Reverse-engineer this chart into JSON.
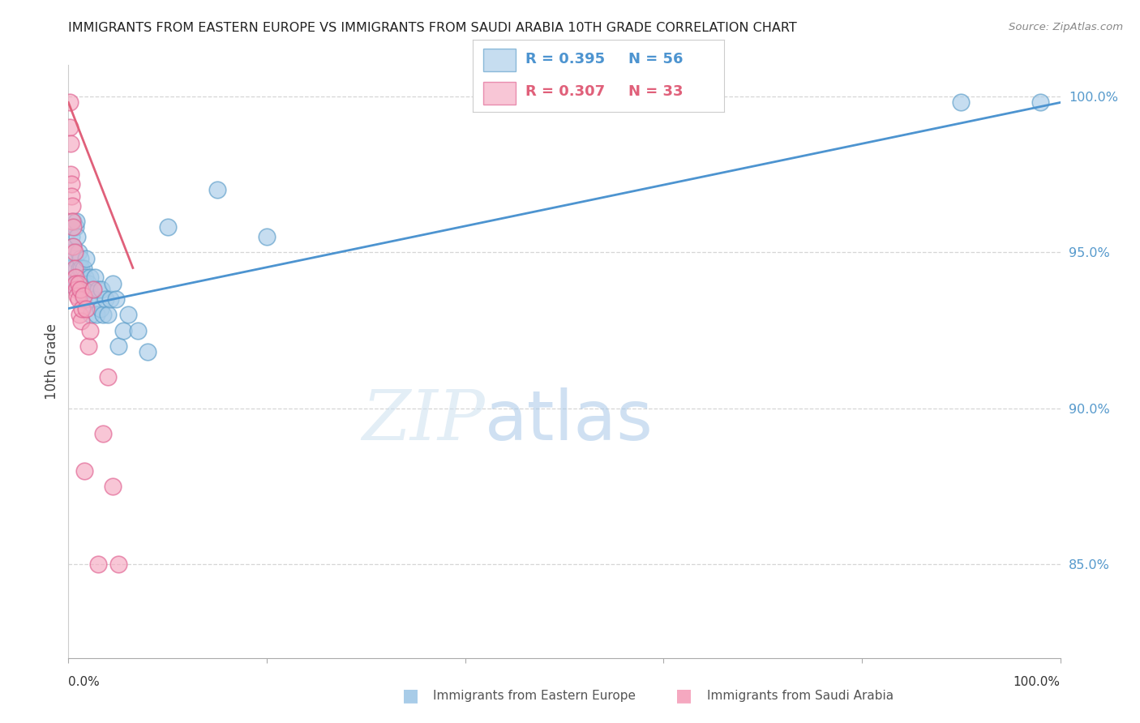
{
  "title": "IMMIGRANTS FROM EASTERN EUROPE VS IMMIGRANTS FROM SAUDI ARABIA 10TH GRADE CORRELATION CHART",
  "source": "Source: ZipAtlas.com",
  "ylabel": "10th Grade",
  "right_ytick_labels": [
    "100.0%",
    "95.0%",
    "90.0%",
    "85.0%"
  ],
  "right_ytick_values": [
    1.0,
    0.95,
    0.9,
    0.85
  ],
  "legend_label_blue": "Immigrants from Eastern Europe",
  "legend_label_pink": "Immigrants from Saudi Arabia",
  "legend_R_blue": "R = 0.395",
  "legend_N_blue": "N = 56",
  "legend_R_pink": "R = 0.307",
  "legend_N_pink": "N = 33",
  "watermark_text": "ZIP",
  "watermark_text2": "atlas",
  "blue_color": "#a8cce8",
  "pink_color": "#f5a8c0",
  "blue_edge_color": "#5b9dc9",
  "pink_edge_color": "#e06090",
  "blue_line_color": "#4d94d0",
  "pink_line_color": "#e0607a",
  "grid_color": "#cccccc",
  "right_label_color": "#5599cc",
  "title_color": "#222222",
  "source_color": "#888888",
  "xmin": 0.0,
  "xmax": 1.0,
  "ymin": 0.82,
  "ymax": 1.01,
  "blue_scatter_x": [
    0.001,
    0.002,
    0.003,
    0.004,
    0.005,
    0.005,
    0.006,
    0.006,
    0.007,
    0.007,
    0.008,
    0.008,
    0.009,
    0.009,
    0.01,
    0.01,
    0.011,
    0.011,
    0.012,
    0.012,
    0.013,
    0.013,
    0.014,
    0.015,
    0.015,
    0.016,
    0.017,
    0.018,
    0.019,
    0.02,
    0.021,
    0.022,
    0.023,
    0.025,
    0.026,
    0.027,
    0.028,
    0.03,
    0.032,
    0.033,
    0.035,
    0.037,
    0.04,
    0.042,
    0.045,
    0.048,
    0.05,
    0.055,
    0.06,
    0.07,
    0.08,
    0.1,
    0.15,
    0.2,
    0.9,
    0.98
  ],
  "blue_scatter_y": [
    0.94,
    0.945,
    0.955,
    0.95,
    0.952,
    0.96,
    0.948,
    0.942,
    0.958,
    0.94,
    0.96,
    0.945,
    0.94,
    0.955,
    0.95,
    0.942,
    0.945,
    0.938,
    0.94,
    0.948,
    0.938,
    0.945,
    0.938,
    0.945,
    0.935,
    0.94,
    0.942,
    0.948,
    0.935,
    0.94,
    0.938,
    0.942,
    0.93,
    0.938,
    0.935,
    0.942,
    0.93,
    0.938,
    0.932,
    0.938,
    0.93,
    0.935,
    0.93,
    0.935,
    0.94,
    0.935,
    0.92,
    0.925,
    0.93,
    0.925,
    0.918,
    0.958,
    0.97,
    0.955,
    0.998,
    0.998
  ],
  "pink_scatter_x": [
    0.001,
    0.001,
    0.002,
    0.002,
    0.003,
    0.003,
    0.004,
    0.004,
    0.005,
    0.005,
    0.006,
    0.006,
    0.007,
    0.007,
    0.008,
    0.009,
    0.01,
    0.01,
    0.011,
    0.012,
    0.013,
    0.014,
    0.015,
    0.016,
    0.018,
    0.02,
    0.022,
    0.025,
    0.03,
    0.035,
    0.04,
    0.045,
    0.05
  ],
  "pink_scatter_y": [
    0.998,
    0.99,
    0.985,
    0.975,
    0.972,
    0.968,
    0.965,
    0.96,
    0.958,
    0.952,
    0.95,
    0.945,
    0.942,
    0.94,
    0.938,
    0.936,
    0.94,
    0.935,
    0.93,
    0.938,
    0.928,
    0.932,
    0.936,
    0.88,
    0.932,
    0.92,
    0.925,
    0.938,
    0.85,
    0.892,
    0.91,
    0.875,
    0.85
  ],
  "blue_trendline_x": [
    0.0,
    1.0
  ],
  "blue_trendline_y": [
    0.932,
    0.998
  ],
  "pink_trendline_x": [
    0.0,
    0.065
  ],
  "pink_trendline_y": [
    0.998,
    0.945
  ]
}
